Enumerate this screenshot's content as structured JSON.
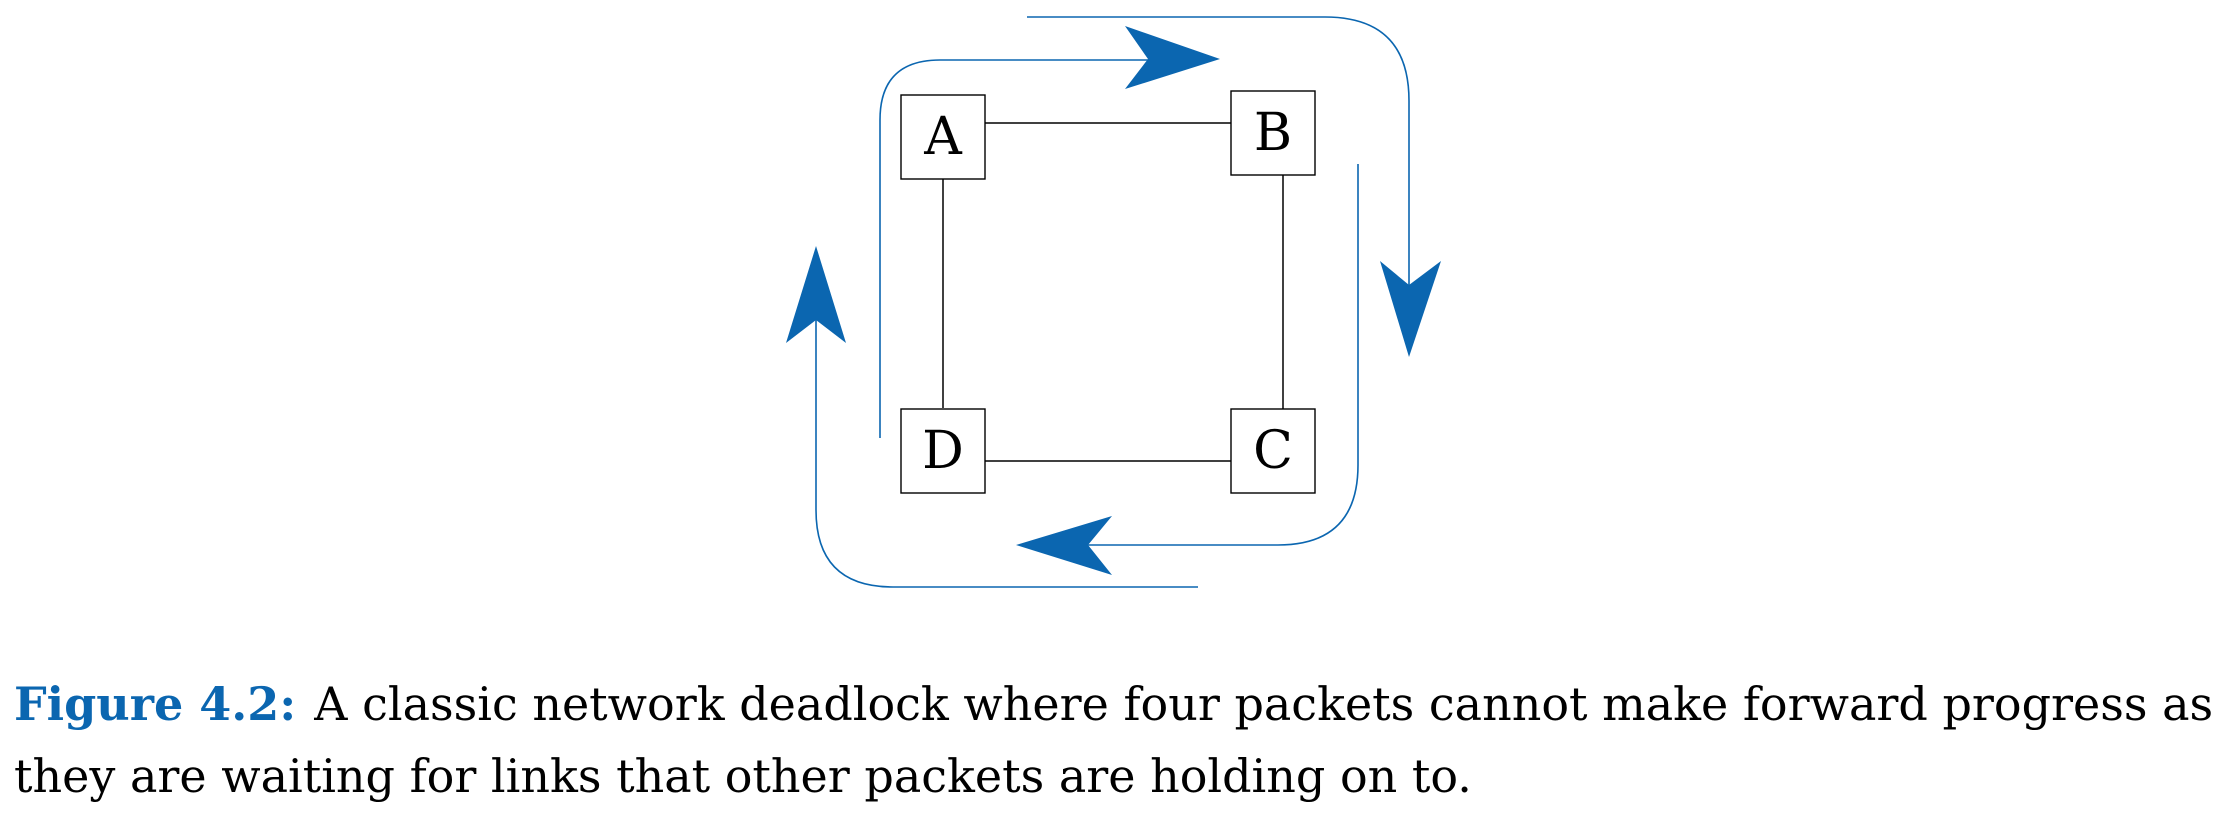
{
  "nodes": {
    "a": "A",
    "b": "B",
    "c": "C",
    "d": "D"
  },
  "caption": {
    "label": "Figure 4.2:",
    "text": "A classic network deadlock where four packets cannot make forward progress as they are waiting for links that other packets are holding on to."
  },
  "colors": {
    "accent": "#0b66b0",
    "line": "#000000"
  }
}
